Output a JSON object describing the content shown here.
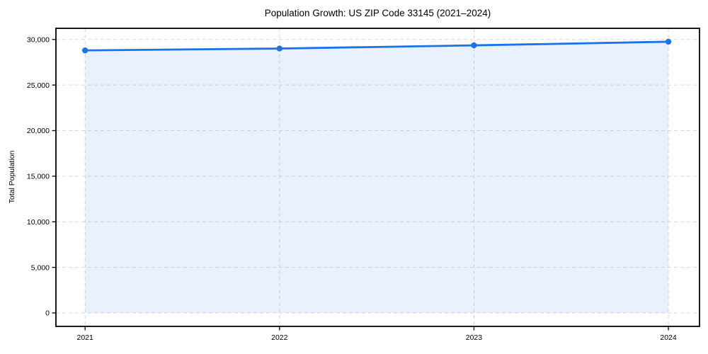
{
  "figure": {
    "background": "#ffffff"
  },
  "chart_data": {
    "type": "area",
    "title": "Population Growth: US ZIP Code 33145 (2021–2024)",
    "xlabel": "",
    "ylabel": "Total Population",
    "x": [
      2021,
      2022,
      2023,
      2024
    ],
    "xticklabels": [
      "2021",
      "2022",
      "2023",
      "2024"
    ],
    "series": [
      {
        "name": "Total Population",
        "values": [
          28800,
          29000,
          29350,
          29750
        ]
      }
    ],
    "yticks": [
      0,
      5000,
      10000,
      15000,
      20000,
      25000,
      30000
    ],
    "yticklabels": [
      "0",
      "5,000",
      "10,000",
      "15,000",
      "20,000",
      "25,000",
      "30,000"
    ],
    "ylim": [
      -1475,
      31220
    ],
    "xlim": [
      2020.85,
      2024.16
    ],
    "grid": true,
    "grid_style": "dashed",
    "legend": "none",
    "fill_baseline": 0,
    "colors": {
      "line": "#1a73e8",
      "marker": "#1a73e8",
      "fill": "#1a73e8",
      "fill_opacity": 0.1,
      "grid": "#d6d6d6",
      "spine": "#000000",
      "text": "#000000"
    }
  }
}
